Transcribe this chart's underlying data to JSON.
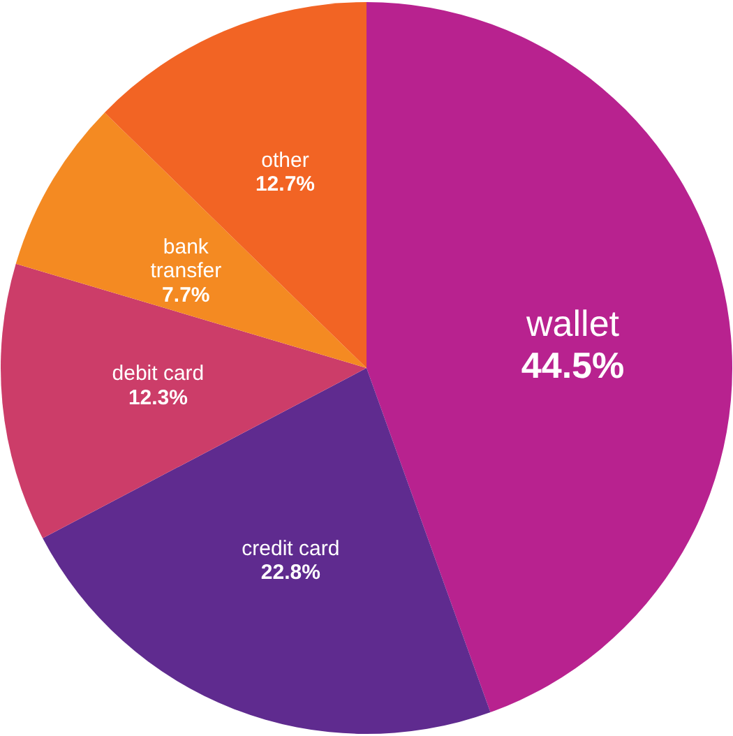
{
  "chart_data": {
    "type": "pie",
    "categories": [
      "wallet",
      "credit card",
      "debit card",
      "bank transfer",
      "other"
    ],
    "values": [
      44.5,
      22.8,
      12.3,
      7.7,
      12.7
    ],
    "colors": [
      "#b8228f",
      "#5f2b8f",
      "#cc3d69",
      "#f48a22",
      "#f26424"
    ],
    "value_labels": [
      "44.5%",
      "22.8%",
      "12.3%",
      "7.7%",
      "12.7%"
    ],
    "legend": false
  }
}
